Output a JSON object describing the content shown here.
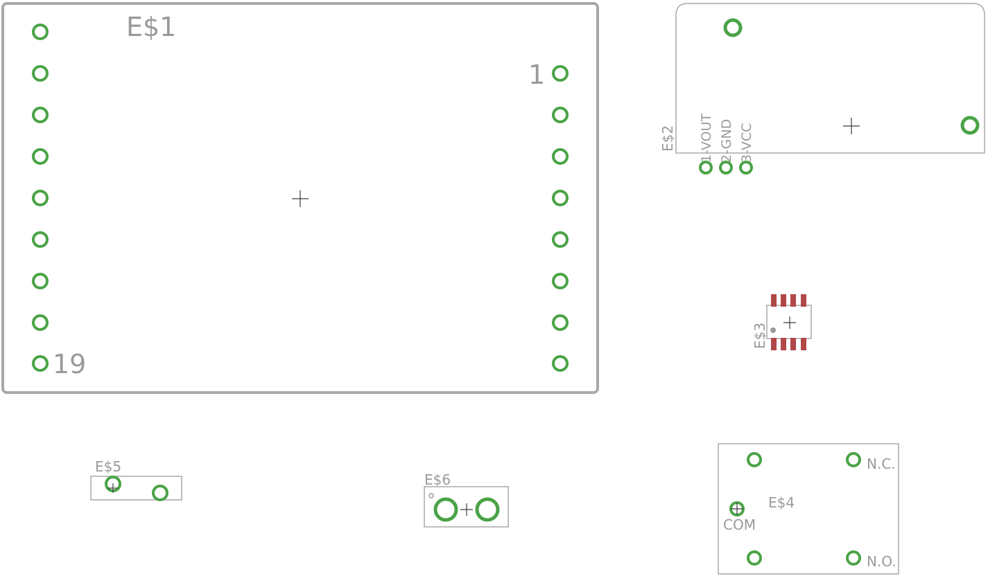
{
  "colors": {
    "background": "#ffffff",
    "outline": "#a8a8a8",
    "pad": "#4aa346",
    "label": "#9a9a9a",
    "smd_pad": "#b04848",
    "origin_cross": "#3a3a3a"
  },
  "parts": {
    "e1": {
      "name": "E$1",
      "pin_first": "1",
      "pin_last": "19"
    },
    "e2": {
      "name": "E$2",
      "pins": [
        "1-VOUT",
        "2-GND",
        "3-VCC"
      ]
    },
    "e3": {
      "name": "E$3"
    },
    "e4": {
      "name": "E$4",
      "pin_nc": "N.C.",
      "pin_com": "COM",
      "pin_no": "N.O."
    },
    "e5": {
      "name": "E$5"
    },
    "e6": {
      "name": "E$6"
    }
  }
}
